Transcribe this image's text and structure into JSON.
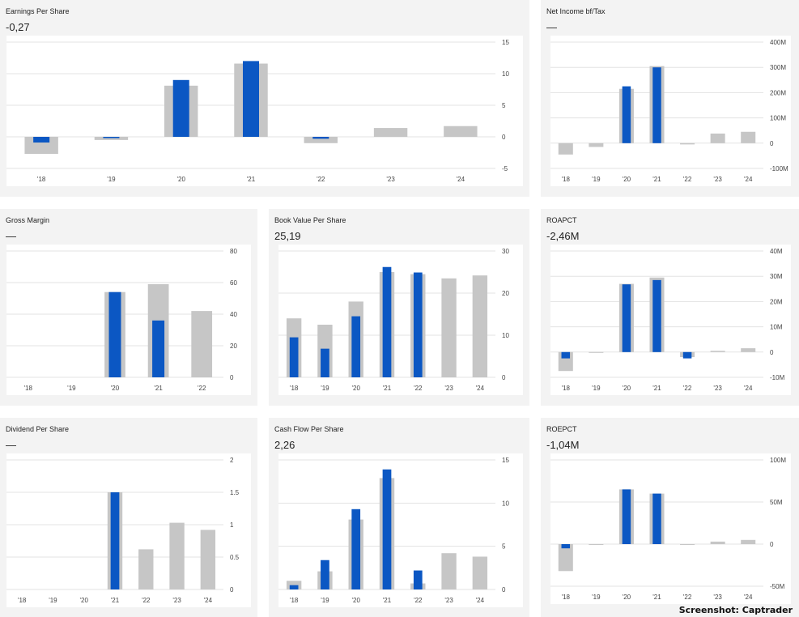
{
  "colors": {
    "actual": "#0b57c3",
    "estimate": "#c6c6c6",
    "grid": "#e3e3e3",
    "tick": "#444444"
  },
  "credit": "Screenshot: Captrader",
  "chart_data": [
    {
      "type": "bar",
      "title": "Earnings Per Share",
      "headline": "-0,27",
      "categories": [
        "'18",
        "'19",
        "'20",
        "'21",
        "'22",
        "'23",
        "'24"
      ],
      "ylim": [
        -5,
        15
      ],
      "yticks": [
        15,
        10,
        5,
        0,
        -5
      ],
      "ytick_labels": [
        "15",
        "10",
        "5",
        "0",
        "-5"
      ],
      "series": [
        {
          "values": [
            -2.7,
            -0.5,
            8.1,
            11.6,
            -1.0,
            1.4,
            1.7
          ]
        },
        {
          "values": [
            -0.9,
            -0.2,
            9.0,
            12.0,
            -0.3,
            null,
            null
          ]
        }
      ]
    },
    {
      "type": "bar",
      "title": "Net Income bf/Tax",
      "headline": "—",
      "categories": [
        "'18",
        "'19",
        "'20",
        "'21",
        "'22",
        "'23",
        "'24"
      ],
      "ylim": [
        -100,
        400
      ],
      "yticks": [
        400,
        300,
        200,
        100,
        0,
        -100
      ],
      "ytick_labels": [
        "400M",
        "300M",
        "200M",
        "100M",
        "0",
        "-100M"
      ],
      "series": [
        {
          "values": [
            -45,
            -15,
            215,
            305,
            -5,
            38,
            45
          ]
        },
        {
          "values": [
            null,
            null,
            225,
            300,
            null,
            null,
            null
          ]
        }
      ]
    },
    {
      "type": "bar",
      "title": "Gross Margin",
      "headline": "—",
      "categories": [
        "'18",
        "'19",
        "'20",
        "'21",
        "'22"
      ],
      "ylim": [
        0,
        80
      ],
      "yticks": [
        80,
        60,
        40,
        20,
        0
      ],
      "ytick_labels": [
        "80",
        "60",
        "40",
        "20",
        "0"
      ],
      "series": [
        {
          "values": [
            null,
            null,
            54,
            59,
            42
          ]
        },
        {
          "values": [
            null,
            null,
            54,
            36,
            null
          ]
        }
      ]
    },
    {
      "type": "bar",
      "title": "Book Value Per Share",
      "headline": "25,19",
      "categories": [
        "'18",
        "'19",
        "'20",
        "'21",
        "'22",
        "'23",
        "'24"
      ],
      "ylim": [
        0,
        30
      ],
      "yticks": [
        30,
        20,
        10,
        0
      ],
      "ytick_labels": [
        "30",
        "20",
        "10",
        "0"
      ],
      "series": [
        {
          "values": [
            14,
            12.5,
            18,
            25,
            24.5,
            23.5,
            24.2
          ]
        },
        {
          "values": [
            9.5,
            6.8,
            14.5,
            26.2,
            24.9,
            null,
            null
          ]
        }
      ]
    },
    {
      "type": "bar",
      "title": "ROAPCT",
      "headline": "-2,46M",
      "categories": [
        "'18",
        "'19",
        "'20",
        "'21",
        "'22",
        "'23",
        "'24"
      ],
      "ylim": [
        -10,
        40
      ],
      "yticks": [
        40,
        30,
        20,
        10,
        0,
        -10
      ],
      "ytick_labels": [
        "40M",
        "30M",
        "20M",
        "10M",
        "0",
        "-10M"
      ],
      "series": [
        {
          "values": [
            -7.5,
            -0.3,
            27,
            29.5,
            -2,
            0.5,
            1.5
          ]
        },
        {
          "values": [
            -2.5,
            null,
            26.8,
            28.5,
            -2.5,
            null,
            null
          ]
        }
      ]
    },
    {
      "type": "bar",
      "title": "Dividend Per Share",
      "headline": "—",
      "categories": [
        "'18",
        "'19",
        "'20",
        "'21",
        "'22",
        "'23",
        "'24"
      ],
      "ylim": [
        0,
        2
      ],
      "yticks": [
        2,
        1.5,
        1,
        0.5,
        0
      ],
      "ytick_labels": [
        "2",
        "1.5",
        "1",
        "0.5",
        "0"
      ],
      "series": [
        {
          "values": [
            null,
            null,
            null,
            1.5,
            0.62,
            1.03,
            0.92
          ]
        },
        {
          "values": [
            null,
            null,
            null,
            1.5,
            null,
            null,
            null
          ]
        }
      ]
    },
    {
      "type": "bar",
      "title": "Cash Flow Per Share",
      "headline": "2,26",
      "categories": [
        "'18",
        "'19",
        "'20",
        "'21",
        "'22",
        "'23",
        "'24"
      ],
      "ylim": [
        0,
        15
      ],
      "yticks": [
        15,
        10,
        5,
        0
      ],
      "ytick_labels": [
        "15",
        "10",
        "5",
        "0"
      ],
      "series": [
        {
          "values": [
            1.0,
            2.1,
            8.1,
            12.9,
            0.7,
            4.2,
            3.8
          ]
        },
        {
          "values": [
            0.5,
            3.4,
            9.3,
            13.9,
            2.2,
            null,
            null
          ]
        }
      ]
    },
    {
      "type": "bar",
      "title": "ROEPCT",
      "headline": "-1,04M",
      "categories": [
        "'18",
        "'19",
        "'20",
        "'21",
        "'22",
        "'23",
        "'24"
      ],
      "ylim": [
        -50,
        100
      ],
      "yticks": [
        100,
        50,
        0,
        -50
      ],
      "ytick_labels": [
        "100M",
        "50M",
        "0",
        "-50M"
      ],
      "series": [
        {
          "values": [
            -32,
            -1,
            65,
            60,
            -1,
            3,
            5
          ]
        },
        {
          "values": [
            -5,
            null,
            65,
            60,
            null,
            null,
            null
          ]
        }
      ]
    }
  ]
}
